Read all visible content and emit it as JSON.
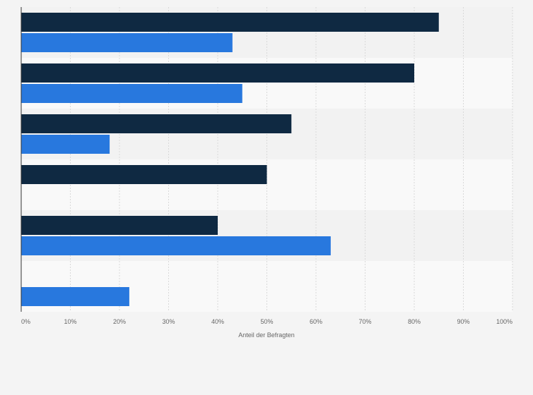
{
  "chart_data": {
    "type": "bar",
    "orientation": "horizontal",
    "categories": [
      "",
      "",
      "",
      "",
      "",
      ""
    ],
    "series": [
      {
        "values": [
          85,
          80,
          55,
          50,
          40,
          null
        ]
      },
      {
        "values": [
          43,
          45,
          18,
          null,
          63,
          22
        ]
      }
    ],
    "xlabel": "Anteil der Befragten",
    "ylabel": "",
    "xlim": [
      0,
      100
    ],
    "x_ticks": [
      "0%",
      "10%",
      "20%",
      "30%",
      "40%",
      "50%",
      "60%",
      "70%",
      "80%",
      "90%",
      "100%"
    ],
    "grid": true,
    "legend": false
  },
  "colors": {
    "series_1": "#0f2942",
    "series_2": "#2878de",
    "band_odd": "#f2f2f2",
    "band_even": "#f9f9f9"
  }
}
